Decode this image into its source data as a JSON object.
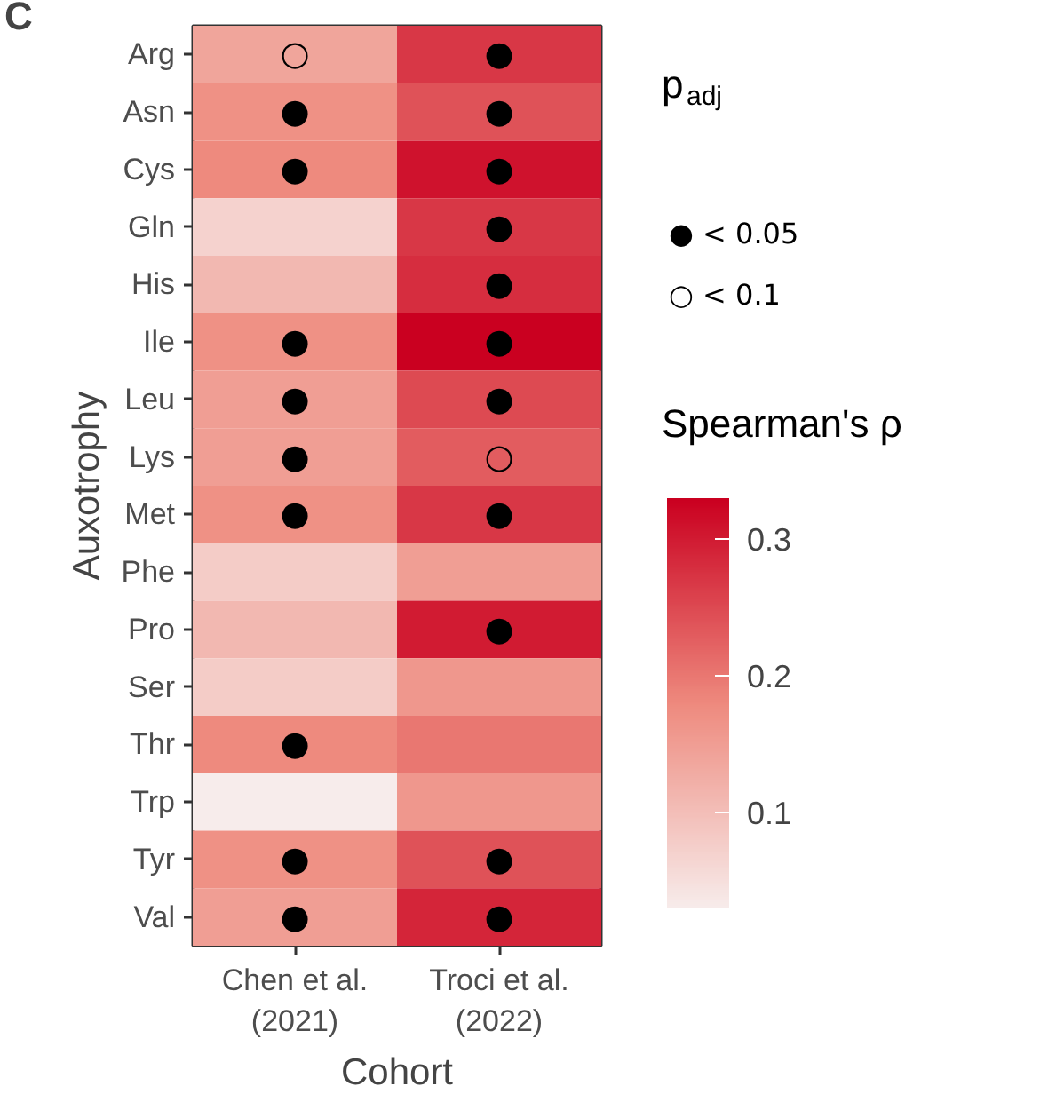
{
  "chart_data": {
    "type": "heatmap",
    "title": "C",
    "xlabel": "Cohort",
    "ylabel": "Auxotrophy",
    "legend_title": "p$_{adj}$",
    "clabel": "Spearman's ρ",
    "categories": [
      "Chen et al.\n(2021)",
      "Troci et al.\n(2022)"
    ],
    "y_categories": [
      "Arg",
      "Asn",
      "Cys",
      "Gln",
      "His",
      "Ile",
      "Leu",
      "Lys",
      "Met",
      "Phe",
      "Pro",
      "Ser",
      "Thr",
      "Trp",
      "Tyr",
      "Val"
    ],
    "cells": [
      [
        0.14,
        0.27
      ],
      [
        0.17,
        0.24
      ],
      [
        0.18,
        0.31
      ],
      [
        0.07,
        0.27
      ],
      [
        0.11,
        0.28
      ],
      [
        0.17,
        0.33
      ],
      [
        0.15,
        0.25
      ],
      [
        0.15,
        0.23
      ],
      [
        0.17,
        0.27
      ],
      [
        0.08,
        0.15
      ],
      [
        0.11,
        0.3
      ],
      [
        0.08,
        0.16
      ],
      [
        0.18,
        0.2
      ],
      [
        0.03,
        0.16
      ],
      [
        0.17,
        0.24
      ],
      [
        0.15,
        0.29
      ]
    ],
    "cell_labels": [
      [
        "○",
        "●"
      ],
      [
        "●",
        "●"
      ],
      [
        "●",
        "●"
      ],
      [
        null,
        "●"
      ],
      [
        null,
        "●"
      ],
      [
        "●",
        "●"
      ],
      [
        "●",
        "●"
      ],
      [
        "●",
        "○"
      ],
      [
        "●",
        "●"
      ],
      [
        null,
        null
      ],
      [
        null,
        "●"
      ],
      [
        null,
        null
      ],
      [
        "●",
        null
      ],
      [
        null,
        null
      ],
      [
        "●",
        "●"
      ],
      [
        "●",
        "●"
      ]
    ],
    "clim": [
      0.03,
      0.33
    ],
    "cticks": [
      0.1,
      0.2,
      0.3
    ],
    "annotations": [
      "●  < 0.05",
      "○  < 0.1"
    ]
  }
}
